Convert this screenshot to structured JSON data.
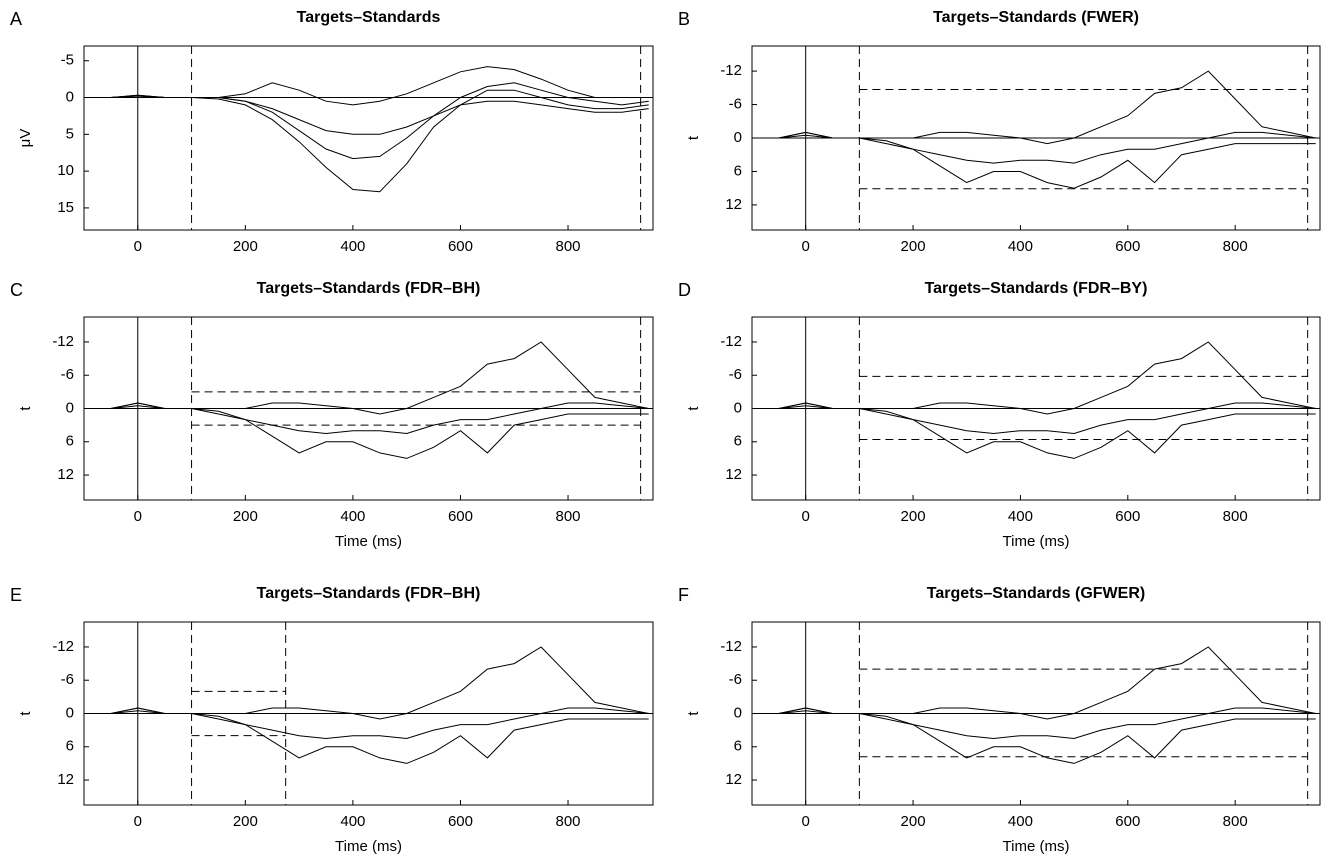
{
  "chart_data": [
    {
      "type": "line",
      "label": "A",
      "title": "Targets–Standards",
      "ylabel": "μV",
      "x": [
        -100,
        -50,
        0,
        50,
        100,
        150,
        200,
        250,
        300,
        350,
        400,
        450,
        500,
        550,
        600,
        650,
        700,
        750,
        800,
        850,
        900,
        950
      ],
      "series": [
        {
          "color": "#000",
          "values": [
            0,
            0,
            -0.3,
            0,
            0,
            0.2,
            1,
            3,
            6,
            9.5,
            12.5,
            12.8,
            9,
            4,
            1,
            -1,
            -1,
            0,
            1,
            1.5,
            1.5,
            1
          ]
        },
        {
          "color": "#000",
          "values": [
            0,
            0,
            -0.2,
            0,
            0,
            0,
            0.5,
            1.5,
            3,
            4.5,
            5,
            5,
            4,
            2.5,
            1,
            0.5,
            0.5,
            1,
            1.5,
            2,
            2,
            1.5
          ]
        },
        {
          "color": "#000",
          "values": [
            0,
            0,
            -0.3,
            0,
            0,
            0,
            -0.5,
            -2,
            -1,
            0.5,
            1,
            0.5,
            -0.5,
            -2,
            -3.5,
            -4.2,
            -3.8,
            -2.5,
            -1,
            0,
            0,
            0
          ]
        },
        {
          "color": "#000",
          "values": [
            0,
            0,
            -0.2,
            0,
            0,
            0,
            0.5,
            2,
            4.5,
            7,
            8.3,
            8,
            5.5,
            2.5,
            0,
            -1.5,
            -2,
            -1,
            0,
            0.5,
            1,
            0.5
          ]
        }
      ],
      "xlim": [
        -100,
        958
      ],
      "ylim": [
        -7,
        18
      ],
      "y_inverted": true,
      "xticks": [
        0,
        200,
        400,
        600,
        800
      ],
      "yticks": [
        -5,
        0,
        5,
        10,
        15
      ],
      "markers": [
        100,
        935
      ]
    },
    {
      "type": "line",
      "label": "B",
      "title": "Targets–Standards (FWER)",
      "ylabel": "t",
      "x": [
        -100,
        -50,
        0,
        50,
        100,
        150,
        200,
        250,
        300,
        350,
        400,
        450,
        500,
        550,
        600,
        650,
        700,
        750,
        800,
        850,
        900,
        950
      ],
      "series": [
        {
          "color": "#000",
          "values": [
            0,
            0,
            -1,
            0,
            0,
            1,
            2,
            5,
            8,
            6,
            6,
            8,
            9,
            7,
            4,
            8,
            3,
            2,
            1,
            1,
            1,
            1
          ]
        },
        {
          "color": "#000",
          "values": [
            0,
            0,
            -1,
            0,
            0,
            0,
            0,
            -1,
            -1,
            -0.5,
            0,
            1,
            0,
            -2,
            -4,
            -8,
            -9,
            -12,
            -7,
            -2,
            -1,
            0
          ]
        },
        {
          "color": "#000",
          "values": [
            0,
            0,
            -0.5,
            0,
            0,
            0.5,
            2,
            3,
            4,
            4.5,
            4,
            4,
            4.5,
            3,
            2,
            2,
            1,
            0,
            -1,
            -1,
            -0.5,
            0
          ]
        }
      ],
      "xlim": [
        -100,
        958
      ],
      "ylim": [
        -16.5,
        16.5
      ],
      "y_inverted": true,
      "xticks": [
        0,
        200,
        400,
        600,
        800
      ],
      "yticks": [
        -12,
        -6,
        0,
        6,
        12
      ],
      "markers": [
        100,
        935
      ],
      "thresholds": [
        -8.7,
        9.1
      ],
      "threshold_span": [
        100,
        935
      ]
    },
    {
      "type": "line",
      "label": "C",
      "title": "Targets–Standards (FDR–BH)",
      "ylabel": "t",
      "xlabel": "Time (ms)",
      "x": [
        -100,
        -50,
        0,
        50,
        100,
        150,
        200,
        250,
        300,
        350,
        400,
        450,
        500,
        550,
        600,
        650,
        700,
        750,
        800,
        850,
        900,
        950
      ],
      "series": [
        {
          "color": "#000",
          "values": [
            0,
            0,
            -1,
            0,
            0,
            1,
            2,
            5,
            8,
            6,
            6,
            8,
            9,
            7,
            4,
            8,
            3,
            2,
            1,
            1,
            1,
            1
          ]
        },
        {
          "color": "#000",
          "values": [
            0,
            0,
            -1,
            0,
            0,
            0,
            0,
            -1,
            -1,
            -0.5,
            0,
            1,
            0,
            -2,
            -4,
            -8,
            -9,
            -12,
            -7,
            -2,
            -1,
            0
          ]
        },
        {
          "color": "#000",
          "values": [
            0,
            0,
            -0.5,
            0,
            0,
            0.5,
            2,
            3,
            4,
            4.5,
            4,
            4,
            4.5,
            3,
            2,
            2,
            1,
            0,
            -1,
            -1,
            -0.5,
            0
          ]
        }
      ],
      "xlim": [
        -100,
        958
      ],
      "ylim": [
        -16.5,
        16.5
      ],
      "y_inverted": true,
      "xticks": [
        0,
        200,
        400,
        600,
        800
      ],
      "yticks": [
        -12,
        -6,
        0,
        6,
        12
      ],
      "markers": [
        100,
        935
      ],
      "thresholds": [
        -3.0,
        3.0
      ],
      "threshold_span": [
        100,
        935
      ]
    },
    {
      "type": "line",
      "label": "D",
      "title": "Targets–Standards (FDR–BY)",
      "ylabel": "t",
      "xlabel": "Time (ms)",
      "x": [
        -100,
        -50,
        0,
        50,
        100,
        150,
        200,
        250,
        300,
        350,
        400,
        450,
        500,
        550,
        600,
        650,
        700,
        750,
        800,
        850,
        900,
        950
      ],
      "series": [
        {
          "color": "#000",
          "values": [
            0,
            0,
            -1,
            0,
            0,
            1,
            2,
            5,
            8,
            6,
            6,
            8,
            9,
            7,
            4,
            8,
            3,
            2,
            1,
            1,
            1,
            1
          ]
        },
        {
          "color": "#000",
          "values": [
            0,
            0,
            -1,
            0,
            0,
            0,
            0,
            -1,
            -1,
            -0.5,
            0,
            1,
            0,
            -2,
            -4,
            -8,
            -9,
            -12,
            -7,
            -2,
            -1,
            0
          ]
        },
        {
          "color": "#000",
          "values": [
            0,
            0,
            -0.5,
            0,
            0,
            0.5,
            2,
            3,
            4,
            4.5,
            4,
            4,
            4.5,
            3,
            2,
            2,
            1,
            0,
            -1,
            -1,
            -0.5,
            0
          ]
        }
      ],
      "xlim": [
        -100,
        958
      ],
      "ylim": [
        -16.5,
        16.5
      ],
      "y_inverted": true,
      "xticks": [
        0,
        200,
        400,
        600,
        800
      ],
      "yticks": [
        -12,
        -6,
        0,
        6,
        12
      ],
      "markers": [
        100,
        935
      ],
      "thresholds": [
        -5.8,
        5.6
      ],
      "threshold_span": [
        100,
        935
      ]
    },
    {
      "type": "line",
      "label": "E",
      "title": "Targets–Standards (FDR–BH)",
      "ylabel": "t",
      "xlabel": "Time (ms)",
      "x": [
        -100,
        -50,
        0,
        50,
        100,
        150,
        200,
        250,
        300,
        350,
        400,
        450,
        500,
        550,
        600,
        650,
        700,
        750,
        800,
        850,
        900,
        950
      ],
      "series": [
        {
          "color": "#000",
          "values": [
            0,
            0,
            -1,
            0,
            0,
            1,
            2,
            5,
            8,
            6,
            6,
            8,
            9,
            7,
            4,
            8,
            3,
            2,
            1,
            1,
            1,
            1
          ]
        },
        {
          "color": "#000",
          "values": [
            0,
            0,
            -1,
            0,
            0,
            0,
            0,
            -1,
            -1,
            -0.5,
            0,
            1,
            0,
            -2,
            -4,
            -8,
            -9,
            -12,
            -7,
            -2,
            -1,
            0
          ]
        },
        {
          "color": "#000",
          "values": [
            0,
            0,
            -0.5,
            0,
            0,
            0.5,
            2,
            3,
            4,
            4.5,
            4,
            4,
            4.5,
            3,
            2,
            2,
            1,
            0,
            -1,
            -1,
            -0.5,
            0
          ]
        }
      ],
      "xlim": [
        -100,
        958
      ],
      "ylim": [
        -16.5,
        16.5
      ],
      "y_inverted": true,
      "xticks": [
        0,
        200,
        400,
        600,
        800
      ],
      "yticks": [
        -12,
        -6,
        0,
        6,
        12
      ],
      "markers": [
        100,
        275
      ],
      "thresholds": [
        -4.0,
        4.0
      ],
      "threshold_span": [
        100,
        275
      ]
    },
    {
      "type": "line",
      "label": "F",
      "title": "Targets–Standards (GFWER)",
      "ylabel": "t",
      "xlabel": "Time (ms)",
      "x": [
        -100,
        -50,
        0,
        50,
        100,
        150,
        200,
        250,
        300,
        350,
        400,
        450,
        500,
        550,
        600,
        650,
        700,
        750,
        800,
        850,
        900,
        950
      ],
      "series": [
        {
          "color": "#000",
          "values": [
            0,
            0,
            -1,
            0,
            0,
            1,
            2,
            5,
            8,
            6,
            6,
            8,
            9,
            7,
            4,
            8,
            3,
            2,
            1,
            1,
            1,
            1
          ]
        },
        {
          "color": "#000",
          "values": [
            0,
            0,
            -1,
            0,
            0,
            0,
            0,
            -1,
            -1,
            -0.5,
            0,
            1,
            0,
            -2,
            -4,
            -8,
            -9,
            -12,
            -7,
            -2,
            -1,
            0
          ]
        },
        {
          "color": "#000",
          "values": [
            0,
            0,
            -0.5,
            0,
            0,
            0.5,
            2,
            3,
            4,
            4.5,
            4,
            4,
            4.5,
            3,
            2,
            2,
            1,
            0,
            -1,
            -1,
            -0.5,
            0
          ]
        }
      ],
      "xlim": [
        -100,
        958
      ],
      "ylim": [
        -16.5,
        16.5
      ],
      "y_inverted": true,
      "xticks": [
        0,
        200,
        400,
        600,
        800
      ],
      "yticks": [
        -12,
        -6,
        0,
        6,
        12
      ],
      "markers": [
        100,
        935
      ],
      "thresholds": [
        -8.0,
        7.8
      ],
      "threshold_span": [
        100,
        935
      ]
    }
  ]
}
